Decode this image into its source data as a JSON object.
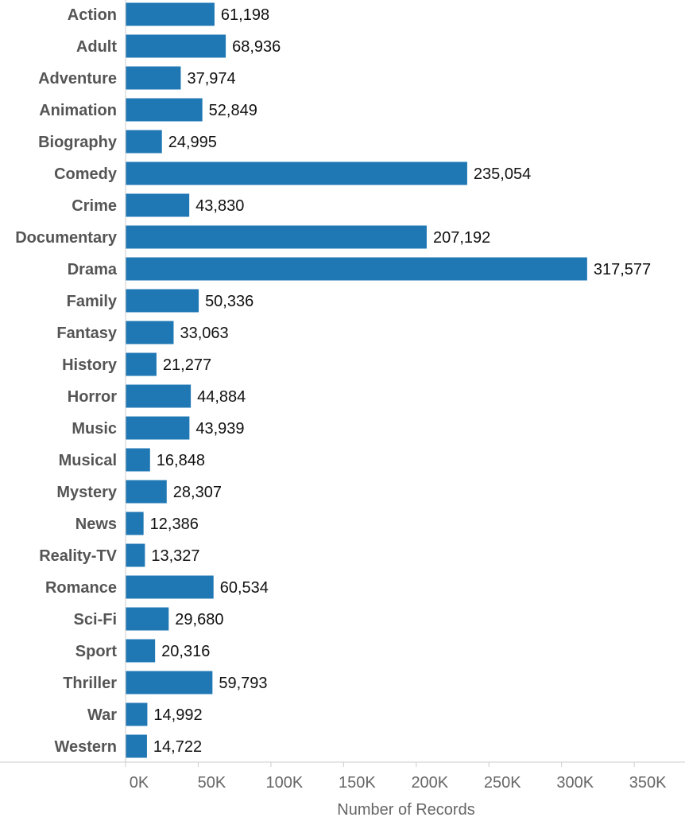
{
  "chart_data": {
    "type": "bar",
    "orientation": "horizontal",
    "categories": [
      "Action",
      "Adult",
      "Adventure",
      "Animation",
      "Biography",
      "Comedy",
      "Crime",
      "Documentary",
      "Drama",
      "Family",
      "Fantasy",
      "History",
      "Horror",
      "Music",
      "Musical",
      "Mystery",
      "News",
      "Reality-TV",
      "Romance",
      "Sci-Fi",
      "Sport",
      "Thriller",
      "War",
      "Western"
    ],
    "values": [
      61198,
      68936,
      37974,
      52849,
      24995,
      235054,
      43830,
      207192,
      317577,
      50336,
      33063,
      21277,
      44884,
      43939,
      16848,
      28307,
      12386,
      13327,
      60534,
      29680,
      20316,
      59793,
      14992,
      14722
    ],
    "value_labels": [
      "61,198",
      "68,936",
      "37,974",
      "52,849",
      "24,995",
      "235,054",
      "43,830",
      "207,192",
      "317,577",
      "50,336",
      "33,063",
      "21,277",
      "44,884",
      "43,939",
      "16,848",
      "28,307",
      "12,386",
      "13,327",
      "60,534",
      "29,680",
      "20,316",
      "59,793",
      "14,992",
      "14,722"
    ],
    "xlabel": "Number of Records",
    "xlim": [
      0,
      350000
    ],
    "x_ticks": [
      0,
      50000,
      100000,
      150000,
      200000,
      250000,
      300000,
      350000
    ],
    "x_tick_labels": [
      "0K",
      "50K",
      "100K",
      "150K",
      "200K",
      "250K",
      "300K",
      "350K"
    ],
    "grid": false,
    "bar_color": "#1f77b4",
    "axis_color": "#cccccc"
  }
}
